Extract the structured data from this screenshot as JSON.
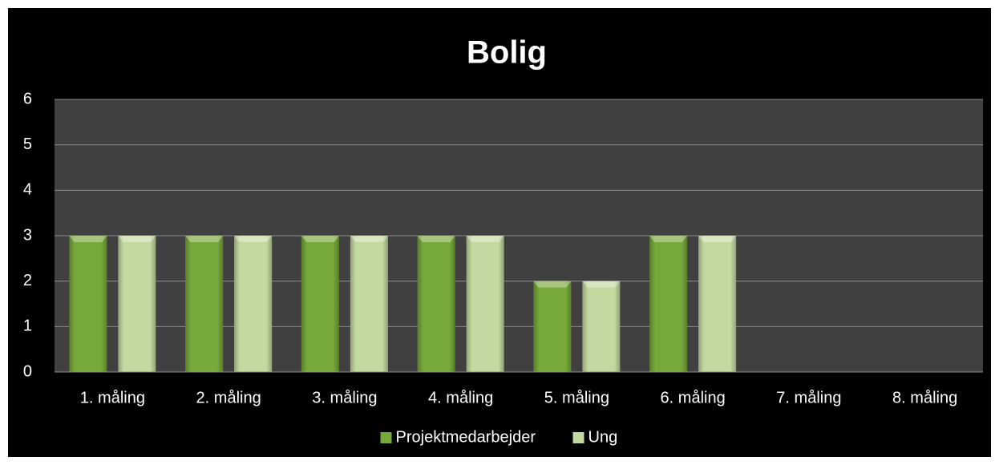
{
  "chart_data": {
    "type": "bar",
    "title": "Bolig",
    "categories": [
      "1. måling",
      "2. måling",
      "3. måling",
      "4. måling",
      "5. måling",
      "6. måling",
      "7. måling",
      "8. måling"
    ],
    "series": [
      {
        "name": "Projektmedarbejder",
        "color": "#77a83a",
        "values": [
          3,
          3,
          3,
          3,
          2,
          3,
          null,
          null
        ]
      },
      {
        "name": "Ung",
        "color": "#c3d9a0",
        "values": [
          3,
          3,
          3,
          3,
          2,
          3,
          null,
          null
        ]
      }
    ],
    "ylim": [
      0,
      6
    ],
    "yticks": [
      0,
      1,
      2,
      3,
      4,
      5,
      6
    ],
    "grid": true,
    "legend": "bottom"
  }
}
